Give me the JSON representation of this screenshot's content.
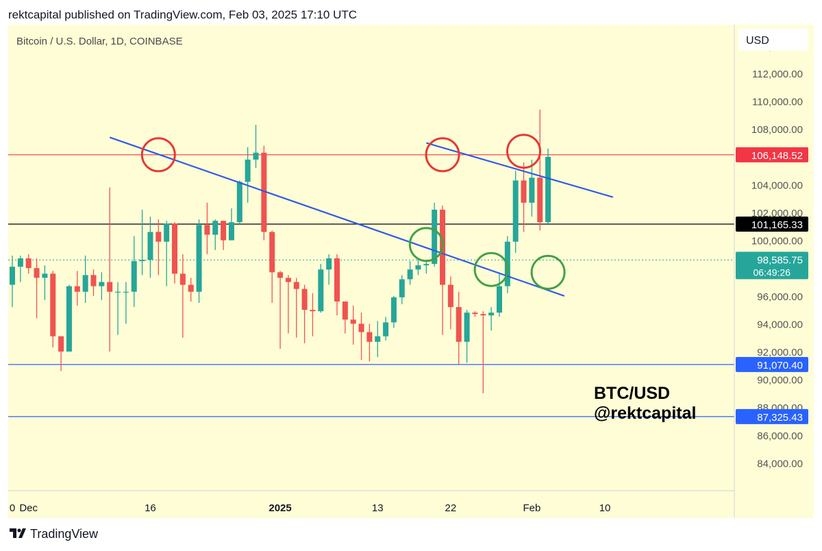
{
  "header": {
    "published_text": "rektcapital published on TradingView.com, Feb 03, 2025 17:10 UTC"
  },
  "footer": {
    "brand_text": "TradingView"
  },
  "chart_data": {
    "type": "candlestick",
    "symbol_title": "Bitcoin / U.S. Dollar, 1D, COINBASE",
    "currency_label": "USD",
    "overlay_text": [
      "BTC/USD",
      "@rektcapital"
    ],
    "ylim": [
      82000,
      115500
    ],
    "y_ticks": [
      84000,
      86000,
      88000,
      90000,
      92000,
      94000,
      96000,
      98000,
      100000,
      102000,
      104000,
      106000,
      108000,
      110000,
      112000,
      114000
    ],
    "y_tick_labels": [
      "84,000.00",
      "86,000.00",
      "88,000.00",
      "90,000.00",
      "92,000.00",
      "94,000.00",
      "96,000.00",
      "98,000.00",
      "100,000.00",
      "102,000.00",
      "104,000.00",
      "106,000.00",
      "108,000.00",
      "110,000.00",
      "112,000.00",
      "114,000.00"
    ],
    "x_ticks": [
      {
        "label": "0",
        "date": "2024-11-29"
      },
      {
        "label": "Dec",
        "date": "2024-12-01"
      },
      {
        "label": "16",
        "date": "2024-12-16"
      },
      {
        "label": "2025",
        "date": "2025-01-01",
        "bold": true
      },
      {
        "label": "13",
        "date": "2025-01-13"
      },
      {
        "label": "22",
        "date": "2025-01-22"
      },
      {
        "label": "Feb",
        "date": "2025-02-01"
      },
      {
        "label": "10",
        "date": "2025-02-10"
      }
    ],
    "horizontal_lines": [
      {
        "price": 106148.52,
        "label": "106,148.52",
        "color": "#f23645",
        "tag_color": "#f23645"
      },
      {
        "price": 101165.33,
        "label": "101,165.33",
        "color": "#000000",
        "tag_color": "#000000"
      },
      {
        "price": 91070.4,
        "label": "91,070.40",
        "color": "#2962ff",
        "tag_color": "#2962ff"
      },
      {
        "price": 87325.43,
        "label": "87,325.43",
        "color": "#2962ff",
        "tag_color": "#2962ff"
      }
    ],
    "current_price": {
      "price": 98585.75,
      "label": "98,585.75",
      "countdown": "06:49:26",
      "color": "#26a69a"
    },
    "trendlines": [
      {
        "from": {
          "date": "2024-12-11",
          "price": 107400
        },
        "to": {
          "date": "2025-02-05",
          "price": 96000
        },
        "color": "#2e5be6"
      },
      {
        "from": {
          "date": "2025-01-19",
          "price": 107000
        },
        "to": {
          "date": "2025-02-11",
          "price": 103100
        },
        "color": "#2e5be6"
      }
    ],
    "circles": [
      {
        "date": "2024-12-17",
        "price": 106150,
        "color": "#e53935"
      },
      {
        "date": "2025-01-21",
        "price": 106150,
        "color": "#e53935"
      },
      {
        "date": "2025-01-31",
        "price": 106400,
        "color": "#e53935"
      },
      {
        "date": "2025-01-19",
        "price": 99700,
        "color": "#43a047"
      },
      {
        "date": "2025-01-27",
        "price": 97900,
        "color": "#43a047"
      },
      {
        "date": "2025-02-03",
        "price": 97700,
        "color": "#43a047"
      }
    ],
    "up_color": "#26a69a",
    "down_color": "#ef5350",
    "candles": [
      {
        "date": "2024-11-28",
        "o": 95000,
        "h": 96800,
        "l": 92600,
        "c": 96800
      },
      {
        "date": "2024-11-29",
        "o": 96800,
        "h": 98900,
        "l": 95200,
        "c": 98100
      },
      {
        "date": "2024-11-30",
        "o": 98100,
        "h": 98900,
        "l": 97000,
        "c": 98700
      },
      {
        "date": "2024-12-01",
        "o": 98700,
        "h": 99000,
        "l": 97600,
        "c": 98000
      },
      {
        "date": "2024-12-02",
        "o": 98000,
        "h": 98700,
        "l": 94400,
        "c": 97300
      },
      {
        "date": "2024-12-03",
        "o": 97300,
        "h": 98200,
        "l": 95700,
        "c": 97600
      },
      {
        "date": "2024-12-04",
        "o": 97600,
        "h": 97800,
        "l": 92300,
        "c": 93100
      },
      {
        "date": "2024-12-05",
        "o": 93100,
        "h": 93100,
        "l": 90600,
        "c": 92000
      },
      {
        "date": "2024-12-06",
        "o": 92000,
        "h": 96800,
        "l": 92000,
        "c": 96700
      },
      {
        "date": "2024-12-07",
        "o": 96700,
        "h": 97800,
        "l": 95300,
        "c": 96300
      },
      {
        "date": "2024-12-08",
        "o": 96300,
        "h": 98900,
        "l": 95500,
        "c": 97500
      },
      {
        "date": "2024-12-09",
        "o": 97500,
        "h": 97900,
        "l": 96000,
        "c": 96700
      },
      {
        "date": "2024-12-10",
        "o": 96700,
        "h": 97700,
        "l": 95700,
        "c": 97000
      },
      {
        "date": "2024-12-11",
        "o": 97000,
        "h": 103800,
        "l": 92000,
        "c": 96300
      },
      {
        "date": "2024-12-12",
        "o": 96300,
        "h": 97000,
        "l": 93200,
        "c": 96300
      },
      {
        "date": "2024-12-13",
        "o": 96300,
        "h": 97000,
        "l": 94000,
        "c": 96300
      },
      {
        "date": "2024-12-14",
        "o": 96300,
        "h": 100300,
        "l": 95200,
        "c": 98500
      },
      {
        "date": "2024-12-15",
        "o": 98500,
        "h": 102200,
        "l": 97500,
        "c": 98600
      },
      {
        "date": "2024-12-16",
        "o": 98600,
        "h": 101700,
        "l": 97300,
        "c": 100600
      },
      {
        "date": "2024-12-17",
        "o": 100600,
        "h": 101500,
        "l": 97500,
        "c": 99900
      },
      {
        "date": "2024-12-18",
        "o": 99900,
        "h": 101400,
        "l": 96700,
        "c": 101200
      },
      {
        "date": "2024-12-19",
        "o": 101200,
        "h": 101300,
        "l": 96900,
        "c": 97600
      },
      {
        "date": "2024-12-20",
        "o": 97600,
        "h": 99000,
        "l": 93000,
        "c": 96800
      },
      {
        "date": "2024-12-21",
        "o": 96800,
        "h": 97300,
        "l": 95600,
        "c": 96300
      },
      {
        "date": "2024-12-22",
        "o": 96300,
        "h": 101500,
        "l": 95500,
        "c": 101100
      },
      {
        "date": "2024-12-23",
        "o": 101100,
        "h": 102700,
        "l": 99000,
        "c": 100400
      },
      {
        "date": "2024-12-24",
        "o": 100400,
        "h": 101500,
        "l": 99300,
        "c": 101400
      },
      {
        "date": "2024-12-25",
        "o": 101400,
        "h": 101400,
        "l": 99300,
        "c": 100000
      },
      {
        "date": "2024-12-26",
        "o": 100000,
        "h": 102300,
        "l": 100000,
        "c": 101300
      },
      {
        "date": "2024-12-27",
        "o": 101300,
        "h": 104300,
        "l": 101100,
        "c": 104200
      },
      {
        "date": "2024-12-28",
        "o": 104200,
        "h": 106700,
        "l": 102700,
        "c": 105800
      },
      {
        "date": "2024-12-29",
        "o": 105800,
        "h": 108300,
        "l": 105200,
        "c": 106300
      },
      {
        "date": "2024-12-30",
        "o": 106300,
        "h": 106800,
        "l": 100000,
        "c": 100600
      },
      {
        "date": "2024-12-31",
        "o": 100600,
        "h": 100700,
        "l": 95500,
        "c": 97700
      },
      {
        "date": "2025-01-01",
        "o": 97700,
        "h": 97800,
        "l": 92200,
        "c": 97300
      },
      {
        "date": "2025-01-02",
        "o": 97300,
        "h": 97500,
        "l": 93300,
        "c": 97000
      },
      {
        "date": "2025-01-03",
        "o": 97000,
        "h": 97300,
        "l": 93000,
        "c": 96500
      },
      {
        "date": "2025-01-04",
        "o": 96500,
        "h": 96800,
        "l": 92600,
        "c": 95000
      },
      {
        "date": "2025-01-05",
        "o": 95000,
        "h": 96200,
        "l": 93100,
        "c": 94900
      },
      {
        "date": "2025-01-06",
        "o": 94900,
        "h": 98300,
        "l": 94800,
        "c": 97900
      },
      {
        "date": "2025-01-07",
        "o": 97900,
        "h": 99000,
        "l": 96800,
        "c": 98700
      },
      {
        "date": "2025-01-08",
        "o": 98700,
        "h": 99000,
        "l": 94600,
        "c": 95600
      },
      {
        "date": "2025-01-09",
        "o": 95600,
        "h": 95600,
        "l": 93300,
        "c": 94300
      },
      {
        "date": "2025-01-10",
        "o": 94300,
        "h": 95300,
        "l": 92500,
        "c": 94000
      },
      {
        "date": "2025-01-11",
        "o": 94000,
        "h": 94800,
        "l": 91400,
        "c": 93400
      },
      {
        "date": "2025-01-12",
        "o": 93400,
        "h": 94000,
        "l": 91300,
        "c": 92700
      },
      {
        "date": "2025-01-13",
        "o": 92700,
        "h": 94200,
        "l": 91600,
        "c": 93100
      },
      {
        "date": "2025-01-14",
        "o": 93100,
        "h": 94500,
        "l": 92800,
        "c": 94100
      },
      {
        "date": "2025-01-15",
        "o": 94100,
        "h": 96000,
        "l": 93700,
        "c": 95900
      },
      {
        "date": "2025-01-16",
        "o": 95900,
        "h": 97500,
        "l": 95400,
        "c": 97200
      },
      {
        "date": "2025-01-17",
        "o": 97200,
        "h": 98500,
        "l": 96800,
        "c": 97900
      },
      {
        "date": "2025-01-18",
        "o": 97900,
        "h": 98600,
        "l": 97500,
        "c": 98200
      },
      {
        "date": "2025-01-19",
        "o": 98200,
        "h": 98500,
        "l": 97600,
        "c": 98300
      },
      {
        "date": "2025-01-20",
        "o": 98300,
        "h": 102700,
        "l": 98100,
        "c": 102200
      },
      {
        "date": "2025-01-21",
        "o": 102200,
        "h": 102500,
        "l": 93200,
        "c": 96800
      },
      {
        "date": "2025-01-22",
        "o": 96800,
        "h": 97400,
        "l": 93600,
        "c": 95200
      },
      {
        "date": "2025-01-23",
        "o": 95200,
        "h": 96300,
        "l": 91100,
        "c": 92700
      },
      {
        "date": "2025-01-24",
        "o": 92700,
        "h": 95000,
        "l": 91200,
        "c": 94800
      },
      {
        "date": "2025-01-25",
        "o": 94800,
        "h": 94900,
        "l": 94500,
        "c": 94700
      },
      {
        "date": "2025-01-26",
        "o": 94700,
        "h": 94900,
        "l": 89000,
        "c": 94600
      },
      {
        "date": "2025-01-27",
        "o": 94600,
        "h": 95200,
        "l": 93500,
        "c": 94800
      },
      {
        "date": "2025-01-28",
        "o": 94800,
        "h": 97700,
        "l": 94500,
        "c": 96700
      },
      {
        "date": "2025-01-29",
        "o": 96700,
        "h": 100300,
        "l": 96200,
        "c": 99900
      },
      {
        "date": "2025-01-30",
        "o": 99900,
        "h": 105000,
        "l": 99100,
        "c": 104300
      },
      {
        "date": "2025-01-31",
        "o": 104300,
        "h": 105600,
        "l": 100600,
        "c": 102700
      },
      {
        "date": "2025-02-01",
        "o": 102700,
        "h": 105800,
        "l": 101700,
        "c": 104500
      },
      {
        "date": "2025-02-02",
        "o": 104500,
        "h": 109400,
        "l": 100700,
        "c": 101300
      },
      {
        "date": "2025-02-03",
        "o": 101300,
        "h": 106600,
        "l": 101200,
        "c": 106000
      }
    ]
  }
}
